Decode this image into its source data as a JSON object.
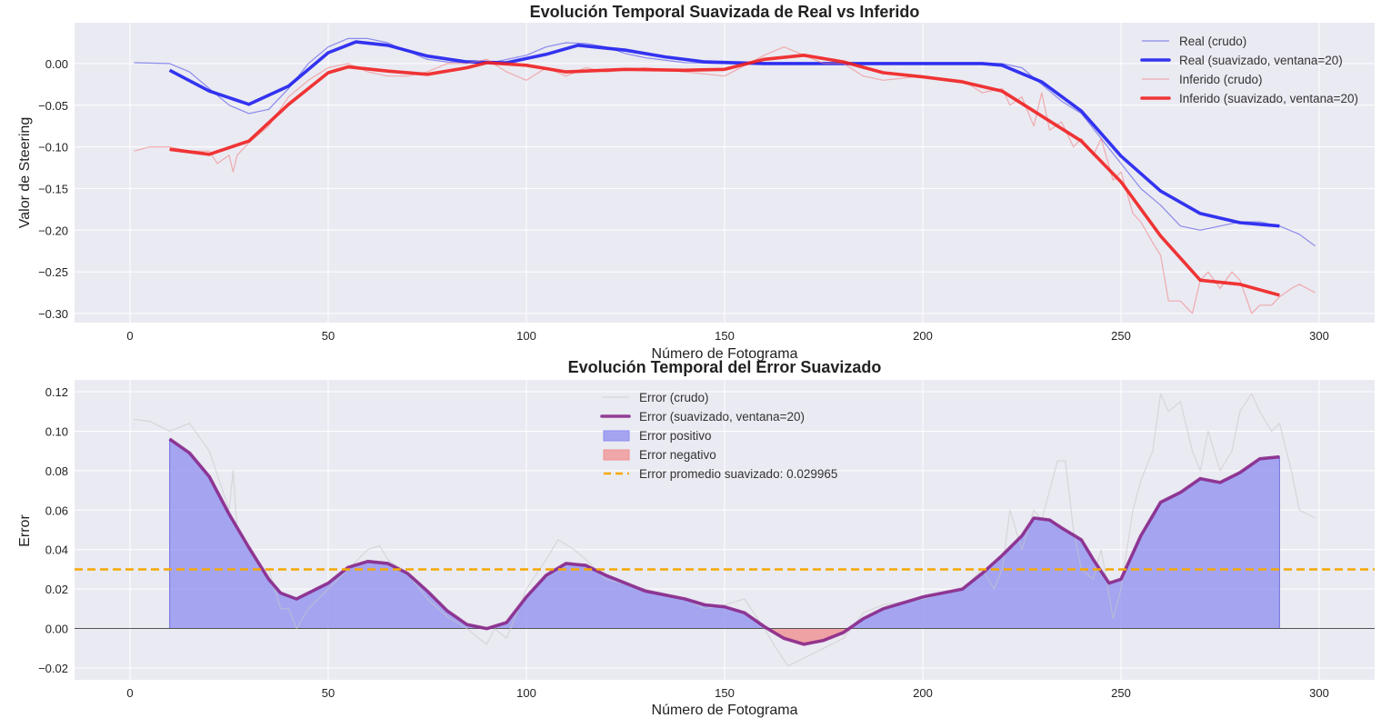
{
  "chart_data": [
    {
      "type": "line",
      "title": "Evolución Temporal Suavizada de Real vs Inferido",
      "xlabel": "Número de Fotograma",
      "ylabel": "Valor de Steering",
      "xlim": [
        -14,
        314
      ],
      "ylim": [
        -0.311,
        0.049
      ],
      "xticks": [
        0,
        50,
        100,
        150,
        200,
        250,
        300
      ],
      "yticks": [
        0.0,
        -0.05,
        -0.1,
        -0.15,
        -0.2,
        -0.25,
        -0.3
      ],
      "ytick_labels": [
        "0.00",
        "−0.05",
        "−0.10",
        "−0.15",
        "−0.20",
        "−0.25",
        "−0.30"
      ],
      "grid": true,
      "legend_position": "top-right",
      "series": [
        {
          "name": "Real (crudo)",
          "color": "#4a4ae8",
          "style": "thin",
          "x": [
            1,
            10,
            15,
            20,
            25,
            30,
            35,
            40,
            45,
            50,
            55,
            60,
            65,
            70,
            75,
            80,
            90,
            100,
            105,
            110,
            115,
            120,
            125,
            130,
            140,
            150,
            160,
            170,
            180,
            190,
            200,
            210,
            220,
            225,
            230,
            235,
            240,
            245,
            250,
            255,
            260,
            265,
            270,
            275,
            280,
            285,
            290,
            295,
            299
          ],
          "y": [
            0.001,
            0.0,
            -0.01,
            -0.03,
            -0.05,
            -0.06,
            -0.055,
            -0.03,
            0.0,
            0.02,
            0.03,
            0.03,
            0.025,
            0.015,
            0.005,
            0.002,
            0.0,
            0.01,
            0.02,
            0.025,
            0.024,
            0.02,
            0.012,
            0.007,
            0.001,
            0.0,
            0.0,
            0.0,
            0.0,
            0.0,
            0.0,
            0.0,
            0.0,
            -0.005,
            -0.025,
            -0.045,
            -0.06,
            -0.09,
            -0.12,
            -0.15,
            -0.17,
            -0.195,
            -0.2,
            -0.195,
            -0.19,
            -0.19,
            -0.195,
            -0.205,
            -0.219
          ]
        },
        {
          "name": "Real (suavizado, ventana=20)",
          "color": "#1f1ff0",
          "style": "thick",
          "x": [
            10,
            20,
            30,
            40,
            50,
            57,
            65,
            75,
            85,
            95,
            105,
            113,
            125,
            135,
            145,
            160,
            180,
            200,
            215,
            220,
            230,
            240,
            250,
            260,
            270,
            280,
            290
          ],
          "y": [
            -0.008,
            -0.033,
            -0.049,
            -0.027,
            0.013,
            0.026,
            0.022,
            0.009,
            0.002,
            0.001,
            0.011,
            0.022,
            0.016,
            0.008,
            0.002,
            0.0,
            0.0,
            0.0,
            0.0,
            -0.002,
            -0.022,
            -0.057,
            -0.111,
            -0.153,
            -0.18,
            -0.191,
            -0.195
          ]
        },
        {
          "name": "Inferido (crudo)",
          "color": "#f08080",
          "style": "thin",
          "x": [
            1,
            5,
            10,
            15,
            20,
            22,
            25,
            26,
            27,
            30,
            35,
            40,
            45,
            50,
            55,
            60,
            65,
            70,
            75,
            80,
            85,
            90,
            95,
            100,
            105,
            110,
            115,
            120,
            130,
            140,
            150,
            160,
            165,
            170,
            175,
            180,
            185,
            190,
            200,
            210,
            215,
            220,
            222,
            225,
            228,
            230,
            232,
            235,
            238,
            240,
            243,
            245,
            248,
            250,
            253,
            255,
            258,
            260,
            262,
            265,
            268,
            270,
            272,
            275,
            278,
            280,
            283,
            285,
            288,
            290,
            293,
            295,
            299
          ],
          "y": [
            -0.105,
            -0.1,
            -0.1,
            -0.105,
            -0.105,
            -0.12,
            -0.11,
            -0.13,
            -0.11,
            -0.095,
            -0.075,
            -0.04,
            -0.02,
            -0.005,
            0.0,
            -0.01,
            -0.015,
            -0.015,
            -0.01,
            0.0,
            0.0,
            0.005,
            -0.01,
            -0.02,
            -0.005,
            -0.015,
            -0.005,
            -0.01,
            -0.005,
            -0.01,
            -0.015,
            0.01,
            0.02,
            0.01,
            0.0,
            0.0,
            -0.015,
            -0.02,
            -0.015,
            -0.02,
            -0.035,
            -0.03,
            -0.05,
            -0.04,
            -0.075,
            -0.035,
            -0.08,
            -0.07,
            -0.1,
            -0.09,
            -0.11,
            -0.09,
            -0.14,
            -0.13,
            -0.18,
            -0.19,
            -0.215,
            -0.23,
            -0.285,
            -0.285,
            -0.3,
            -0.26,
            -0.25,
            -0.27,
            -0.25,
            -0.26,
            -0.3,
            -0.29,
            -0.29,
            -0.28,
            -0.27,
            -0.265,
            -0.275
          ]
        },
        {
          "name": "Inferido (suavizado, ventana=20)",
          "color": "#f02020",
          "style": "thick",
          "x": [
            10,
            20,
            30,
            40,
            50,
            55,
            65,
            75,
            85,
            90,
            100,
            110,
            125,
            140,
            150,
            160,
            170,
            180,
            190,
            200,
            210,
            220,
            230,
            240,
            250,
            260,
            270,
            280,
            290
          ],
          "y": [
            -0.103,
            -0.109,
            -0.093,
            -0.049,
            -0.011,
            -0.004,
            -0.009,
            -0.013,
            -0.005,
            0.001,
            -0.002,
            -0.01,
            -0.007,
            -0.008,
            -0.007,
            0.005,
            0.01,
            0.002,
            -0.011,
            -0.016,
            -0.022,
            -0.033,
            -0.063,
            -0.093,
            -0.142,
            -0.207,
            -0.26,
            -0.265,
            -0.278
          ]
        }
      ]
    },
    {
      "type": "area",
      "title": "Evolución Temporal del Error Suavizado",
      "xlabel": "Número de Fotograma",
      "ylabel": "Error",
      "xlim": [
        -14,
        314
      ],
      "ylim": [
        -0.026,
        0.126
      ],
      "xticks": [
        0,
        50,
        100,
        150,
        200,
        250,
        300
      ],
      "yticks": [
        -0.02,
        0.0,
        0.02,
        0.04,
        0.06,
        0.08,
        0.1,
        0.12
      ],
      "ytick_labels": [
        "−0.02",
        "0.00",
        "0.02",
        "0.04",
        "0.06",
        "0.08",
        "0.10",
        "0.12"
      ],
      "grid": true,
      "legend_position": "top-center",
      "zero_line": 0,
      "series": [
        {
          "name": "Error (crudo)",
          "color": "#c8c8c8",
          "style": "thin",
          "x": [
            1,
            5,
            10,
            15,
            20,
            22,
            25,
            26,
            27,
            30,
            33,
            35,
            38,
            40,
            42,
            45,
            50,
            55,
            60,
            63,
            65,
            70,
            75,
            80,
            85,
            88,
            90,
            92,
            95,
            100,
            105,
            108,
            112,
            115,
            120,
            130,
            140,
            145,
            150,
            155,
            160,
            163,
            166,
            170,
            175,
            180,
            185,
            190,
            200,
            210,
            215,
            218,
            220,
            222,
            225,
            228,
            230,
            232,
            234,
            236,
            238,
            240,
            243,
            245,
            248,
            250,
            253,
            255,
            258,
            260,
            262,
            265,
            268,
            270,
            272,
            275,
            278,
            280,
            283,
            285,
            288,
            290,
            293,
            295,
            299
          ],
          "y": [
            0.106,
            0.105,
            0.1,
            0.104,
            0.09,
            0.078,
            0.06,
            0.08,
            0.05,
            0.04,
            0.03,
            0.03,
            0.01,
            0.01,
            0.0,
            0.01,
            0.02,
            0.03,
            0.04,
            0.042,
            0.035,
            0.028,
            0.015,
            0.006,
            0.0,
            -0.005,
            -0.008,
            0.0,
            -0.005,
            0.02,
            0.035,
            0.045,
            0.04,
            0.035,
            0.025,
            0.02,
            0.015,
            0.01,
            0.012,
            0.015,
            0.0,
            -0.01,
            -0.019,
            -0.015,
            -0.01,
            -0.005,
            0.008,
            0.012,
            0.015,
            0.02,
            0.03,
            0.02,
            0.03,
            0.06,
            0.04,
            0.06,
            0.055,
            0.07,
            0.085,
            0.085,
            0.05,
            0.03,
            0.025,
            0.04,
            0.005,
            0.02,
            0.06,
            0.075,
            0.09,
            0.119,
            0.11,
            0.115,
            0.09,
            0.08,
            0.1,
            0.08,
            0.09,
            0.11,
            0.119,
            0.11,
            0.1,
            0.104,
            0.08,
            0.06,
            0.056
          ]
        },
        {
          "name": "Error (suavizado, ventana=20)",
          "color": "#8b2a8b",
          "style": "thick",
          "x": [
            10,
            15,
            20,
            25,
            30,
            35,
            38,
            42,
            50,
            55,
            60,
            65,
            70,
            75,
            80,
            85,
            90,
            95,
            100,
            105,
            110,
            115,
            120,
            130,
            140,
            145,
            150,
            155,
            160,
            165,
            170,
            175,
            180,
            185,
            190,
            200,
            210,
            215,
            220,
            225,
            228,
            232,
            235,
            240,
            243,
            247,
            250,
            255,
            260,
            265,
            270,
            275,
            280,
            285,
            290
          ],
          "y": [
            0.096,
            0.089,
            0.077,
            0.058,
            0.041,
            0.025,
            0.018,
            0.015,
            0.023,
            0.031,
            0.034,
            0.033,
            0.028,
            0.019,
            0.009,
            0.002,
            0.0,
            0.003,
            0.016,
            0.027,
            0.033,
            0.032,
            0.027,
            0.019,
            0.015,
            0.012,
            0.011,
            0.008,
            0.001,
            -0.005,
            -0.008,
            -0.006,
            -0.002,
            0.005,
            0.01,
            0.016,
            0.02,
            0.028,
            0.037,
            0.047,
            0.056,
            0.055,
            0.051,
            0.045,
            0.035,
            0.023,
            0.025,
            0.047,
            0.064,
            0.069,
            0.076,
            0.074,
            0.079,
            0.086,
            0.087
          ]
        },
        {
          "name": "Error positivo",
          "color": "#8c8cf0",
          "style": "fill-positive"
        },
        {
          "name": "Error negativo",
          "color": "#f09090",
          "style": "fill-negative"
        },
        {
          "name": "Error promedio suavizado: 0.029965",
          "color": "#f5a800",
          "style": "dashed",
          "value": 0.029965
        }
      ]
    }
  ]
}
